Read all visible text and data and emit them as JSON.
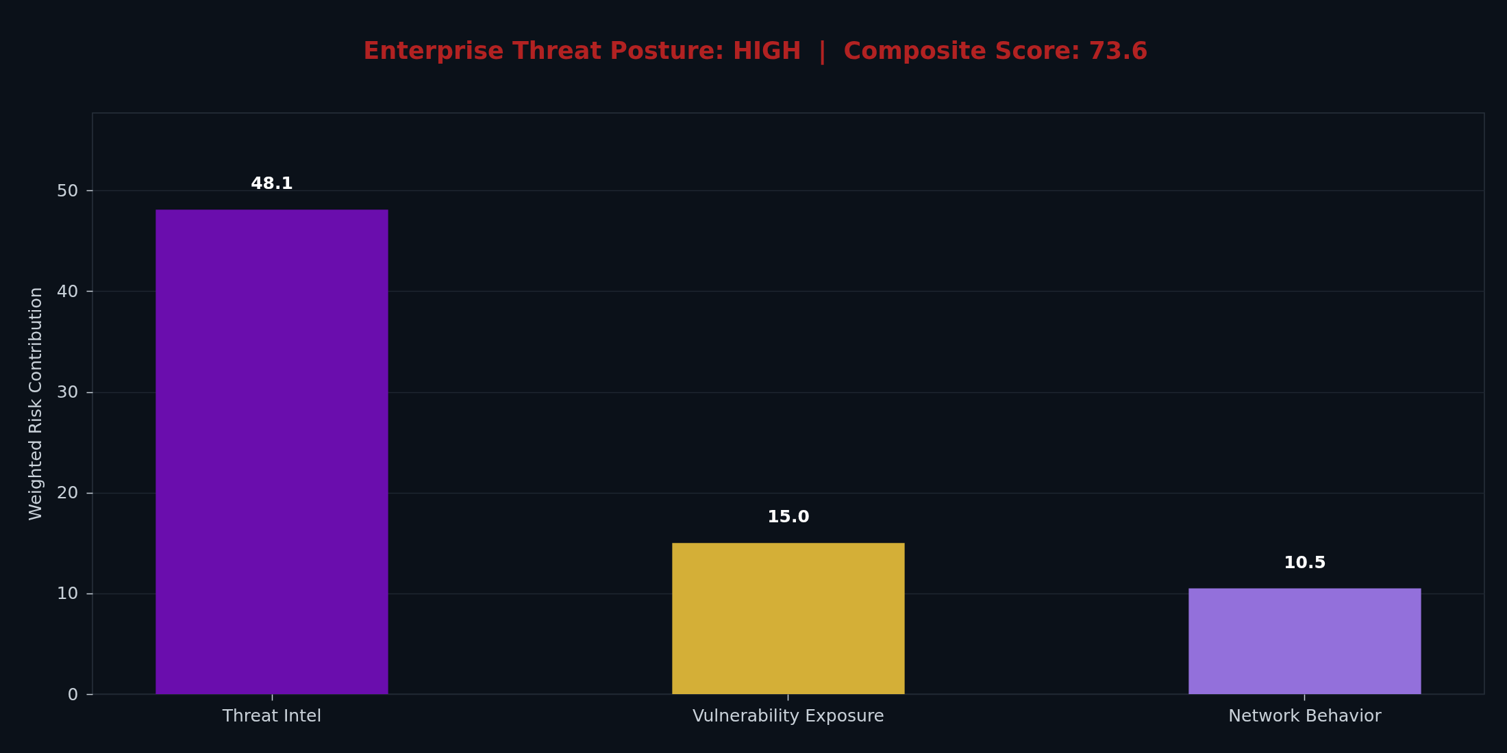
{
  "chart_data": {
    "type": "bar",
    "title": "Enterprise Threat Posture: HIGH  |  Composite Score: 73.6",
    "ylabel": "Weighted Risk Contribution",
    "categories": [
      "Threat Intel",
      "Vulnerability Exposure",
      "Network Behavior"
    ],
    "values": [
      48.1,
      15.0,
      10.5
    ],
    "colors": [
      "#6a0dad",
      "#d4af37",
      "#9370db"
    ],
    "value_labels": [
      "48.1",
      "15.0",
      "10.5"
    ],
    "ylim": [
      0,
      57.7
    ],
    "yticks": [
      0,
      10,
      20,
      30,
      40,
      50
    ],
    "grid": "y"
  }
}
